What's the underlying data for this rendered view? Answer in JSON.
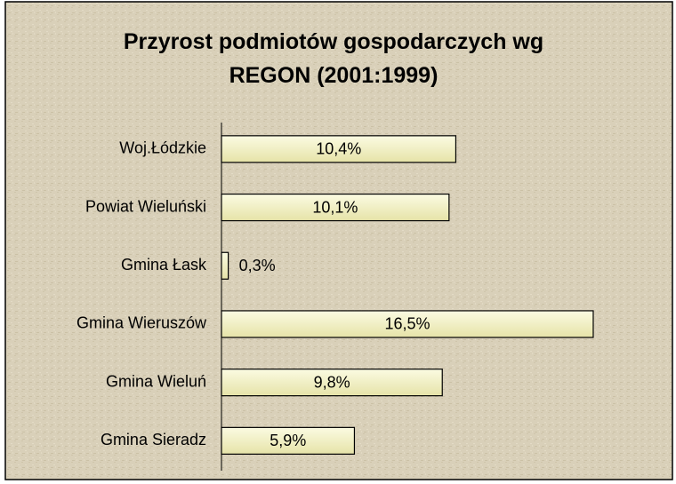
{
  "chart_data": {
    "type": "bar",
    "orientation": "horizontal",
    "title": "Przyrost podmiotów gospodarczych wg REGON (2001:1999)",
    "categories": [
      "Woj.Łódzkie",
      "Powiat Wieluński",
      "Gmina Łask",
      "Gmina Wieruszów",
      "Gmina Wieluń",
      "Gmina Sieradz"
    ],
    "values": [
      10.4,
      10.1,
      0.3,
      16.5,
      9.8,
      5.9
    ],
    "value_labels": [
      "10,4%",
      "10,1%",
      "0,3%",
      "16,5%",
      "9,8%",
      "5,9%"
    ],
    "color": "#f4f2c4"
  }
}
